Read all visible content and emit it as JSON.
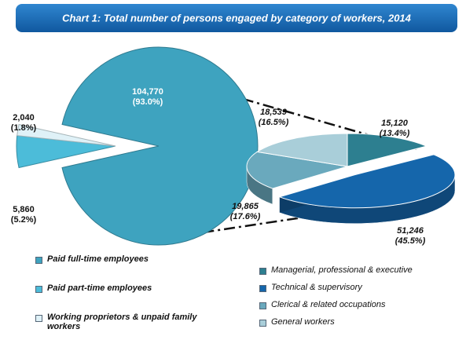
{
  "chart_data": [
    {
      "type": "pie",
      "title": "Chart 1: Total number of persons engaged by category of workers, 2014",
      "categories": [
        "Paid full-time employees",
        "Paid part-time employees",
        "Working proprietors & unpaid family workers"
      ],
      "values": [
        104770,
        5860,
        2040
      ],
      "value_labels": [
        "104,770",
        "5,860",
        "2,040"
      ],
      "percents": [
        93.0,
        5.2,
        1.8
      ],
      "percent_labels": [
        "(93.0%)",
        "(5.2%)",
        "(1.8%)"
      ],
      "colors": [
        "#3ea3bf",
        "#4cbcd9",
        "#dff1f7"
      ]
    },
    {
      "type": "pie3d",
      "categories": [
        "Managerial, professional & executive",
        "Technical & supervisory",
        "Clerical & related occupations",
        "General workers"
      ],
      "values": [
        15120,
        51246,
        19865,
        18539
      ],
      "value_labels": [
        "15,120",
        "51,246",
        "19,865",
        "18,539"
      ],
      "percents": [
        13.4,
        45.5,
        17.6,
        16.5
      ],
      "percent_labels": [
        "(13.4%)",
        "(45.5%)",
        "(17.6%)",
        "(16.5%)"
      ],
      "colors": [
        "#2d7f90",
        "#1566ab",
        "#6aa9bd",
        "#a9ced9"
      ]
    }
  ]
}
